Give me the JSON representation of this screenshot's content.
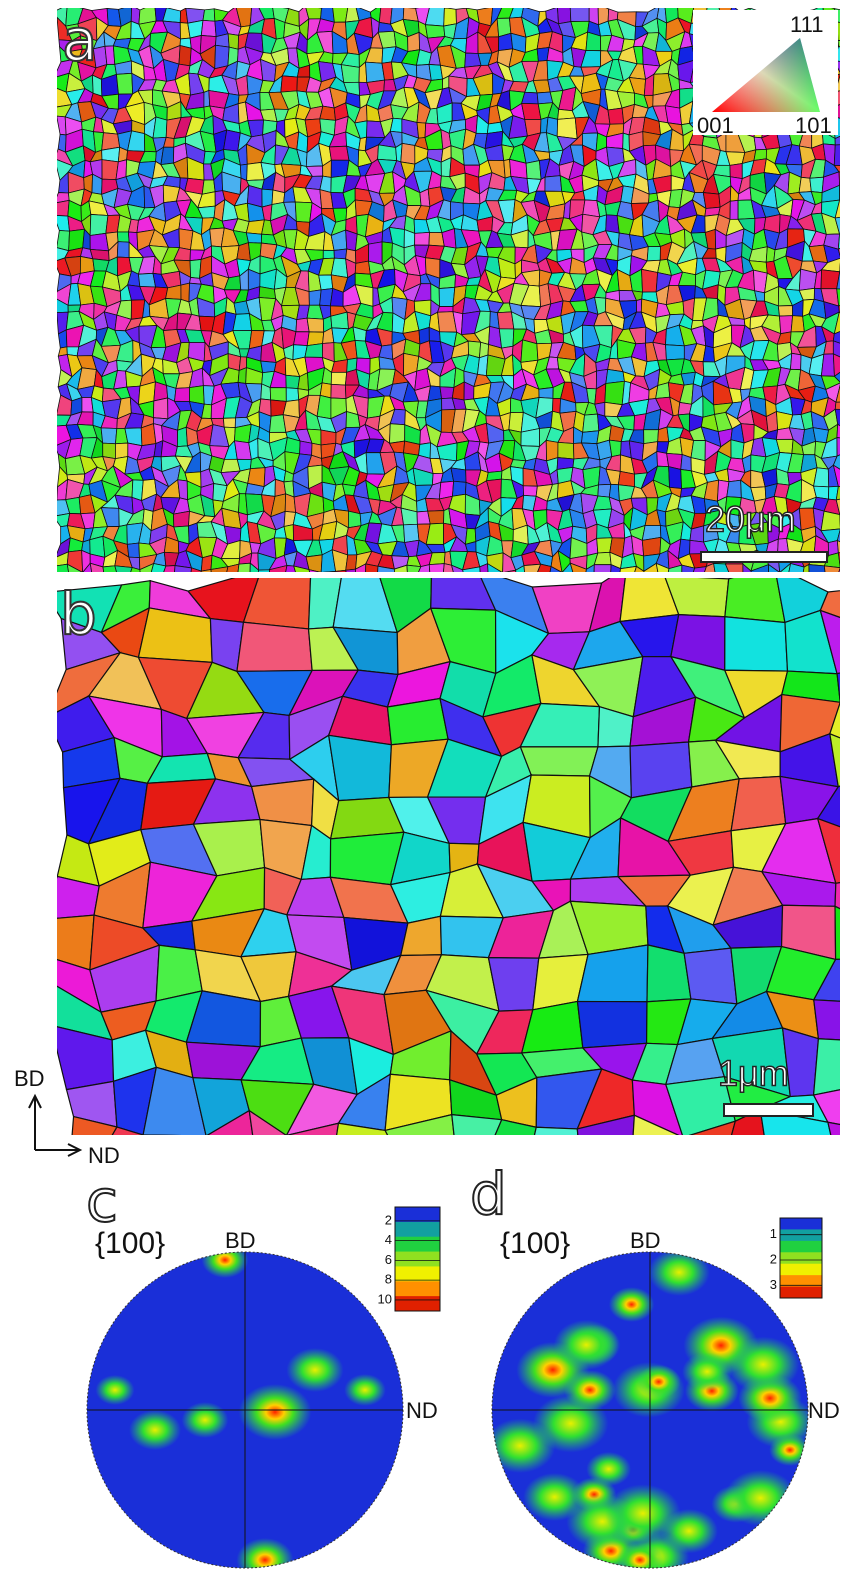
{
  "panel_a": {
    "label": "a",
    "legend": {
      "top": "111",
      "left": "001",
      "right": "101"
    },
    "scale_bar": "20μm"
  },
  "panel_b": {
    "label": "b",
    "scale_bar": "1μm"
  },
  "axes": {
    "vertical": "BD",
    "horizontal": "ND"
  },
  "panel_c": {
    "label": "c",
    "plane": "{100}",
    "top": "BD",
    "right": "ND",
    "colorbar_ticks": [
      2,
      4,
      6,
      8,
      10
    ]
  },
  "panel_d": {
    "label": "d",
    "plane": "{100}",
    "top": "BD",
    "right": "ND",
    "colorbar_ticks": [
      1,
      2,
      3
    ]
  }
}
